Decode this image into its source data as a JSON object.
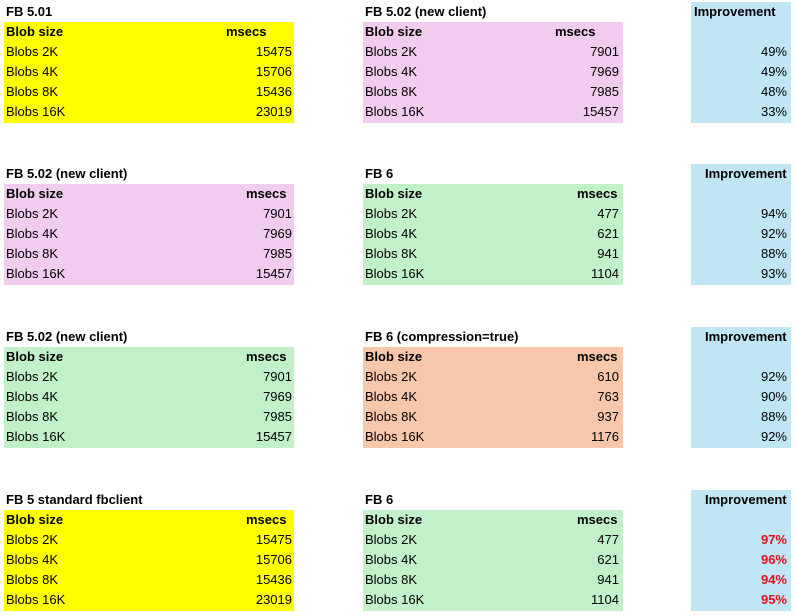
{
  "colors": {
    "yellow": "#ffff00",
    "pink": "#f2ccee",
    "green": "#c2f0c8",
    "orange": "#f7c7ac",
    "blue": "#c0e5f5",
    "highlight_red": "#e0121a"
  },
  "blocks": [
    {
      "left": {
        "title": "FB 5.01",
        "header": {
          "col1": "Blob size",
          "col2": "msecs"
        },
        "rows": [
          {
            "label": "Blobs 2K",
            "value": "15475"
          },
          {
            "label": "Blobs 4K",
            "value": "15706"
          },
          {
            "label": "Blobs 8K",
            "value": "15436"
          },
          {
            "label": "Blobs 16K",
            "value": "23019"
          }
        ]
      },
      "right": {
        "title": "FB 5.02 (new client)",
        "header": {
          "col1": "Blob size",
          "col2": "msecs"
        },
        "rows": [
          {
            "label": "Blobs 2K",
            "value": "7901"
          },
          {
            "label": "Blobs 4K",
            "value": "7969"
          },
          {
            "label": "Blobs 8K",
            "value": "7985"
          },
          {
            "label": "Blobs 16K",
            "value": "15457"
          }
        ]
      },
      "improvement": {
        "title": "Improvement",
        "values": [
          "49%",
          "49%",
          "48%",
          "33%"
        ]
      }
    },
    {
      "left": {
        "title": "FB 5.02 (new client)",
        "header": {
          "col1": "Blob size",
          "col2": "msecs"
        },
        "rows": [
          {
            "label": "Blobs 2K",
            "value": "7901"
          },
          {
            "label": "Blobs 4K",
            "value": "7969"
          },
          {
            "label": "Blobs 8K",
            "value": "7985"
          },
          {
            "label": "Blobs 16K",
            "value": "15457"
          }
        ]
      },
      "right": {
        "title": "FB 6",
        "header": {
          "col1": "Blob size",
          "col2": "msecs"
        },
        "rows": [
          {
            "label": "Blobs 2K",
            "value": "477"
          },
          {
            "label": "Blobs 4K",
            "value": "621"
          },
          {
            "label": "Blobs 8K",
            "value": "941"
          },
          {
            "label": "Blobs 16K",
            "value": "1104"
          }
        ]
      },
      "improvement": {
        "title": "Improvement",
        "values": [
          "94%",
          "92%",
          "88%",
          "93%"
        ]
      }
    },
    {
      "left": {
        "title": "FB 5.02 (new client)",
        "header": {
          "col1": "Blob size",
          "col2": "msecs"
        },
        "rows": [
          {
            "label": "Blobs 2K",
            "value": "7901"
          },
          {
            "label": "Blobs 4K",
            "value": "7969"
          },
          {
            "label": "Blobs 8K",
            "value": "7985"
          },
          {
            "label": "Blobs 16K",
            "value": "15457"
          }
        ]
      },
      "right": {
        "title": "FB 6 (compression=true)",
        "header": {
          "col1": "Blob size",
          "col2": "msecs"
        },
        "rows": [
          {
            "label": "Blobs 2K",
            "value": "610"
          },
          {
            "label": "Blobs 4K",
            "value": "763"
          },
          {
            "label": "Blobs 8K",
            "value": "937"
          },
          {
            "label": "Blobs 16K",
            "value": "1176"
          }
        ]
      },
      "improvement": {
        "title": "Improvement",
        "values": [
          "92%",
          "90%",
          "88%",
          "92%"
        ]
      }
    },
    {
      "left": {
        "title": "FB 5 standard fbclient",
        "header": {
          "col1": "Blob size",
          "col2": "msecs"
        },
        "rows": [
          {
            "label": "Blobs 2K",
            "value": "15475"
          },
          {
            "label": "Blobs 4K",
            "value": "15706"
          },
          {
            "label": "Blobs 8K",
            "value": "15436"
          },
          {
            "label": "Blobs 16K",
            "value": "23019"
          }
        ]
      },
      "right": {
        "title": "FB 6",
        "header": {
          "col1": "Blob size",
          "col2": "msecs"
        },
        "rows": [
          {
            "label": "Blobs 2K",
            "value": "477"
          },
          {
            "label": "Blobs 4K",
            "value": "621"
          },
          {
            "label": "Blobs 8K",
            "value": "941"
          },
          {
            "label": "Blobs 16K",
            "value": "1104"
          }
        ]
      },
      "improvement": {
        "title": "Improvement",
        "values": [
          "97%",
          "96%",
          "94%",
          "95%"
        ]
      }
    }
  ]
}
